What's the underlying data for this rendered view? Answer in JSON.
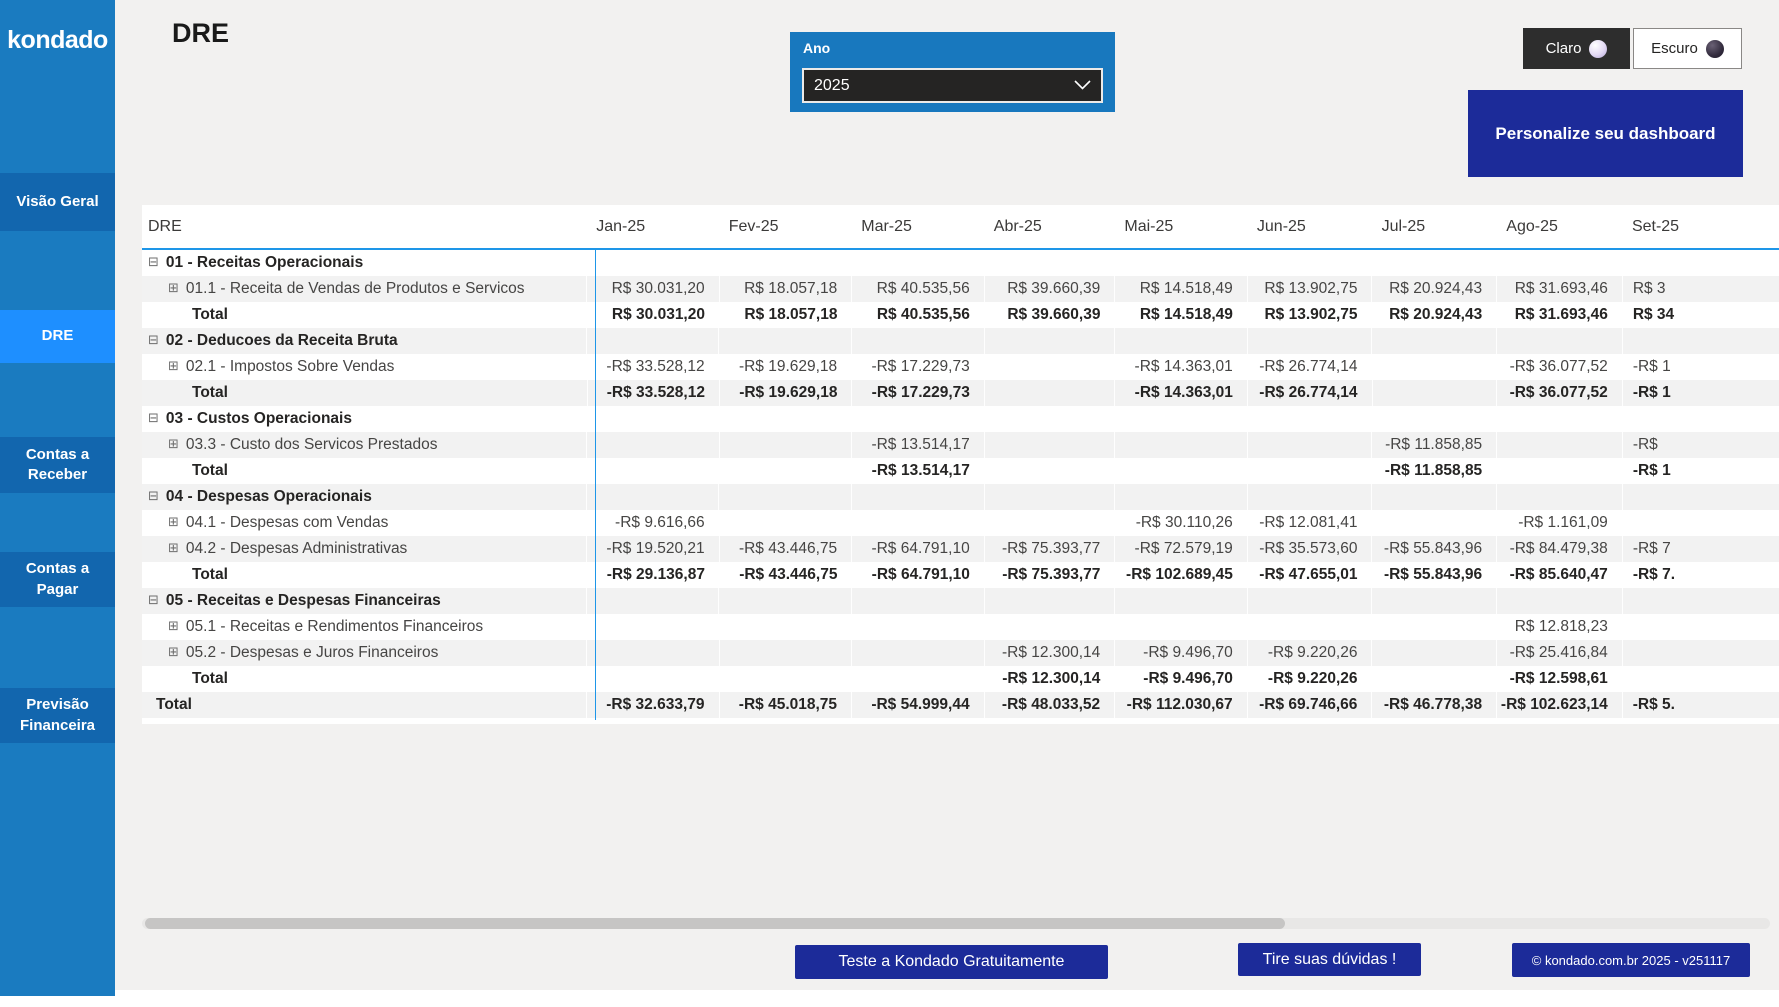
{
  "app": {
    "logo": "kondado"
  },
  "sidebar": {
    "items": [
      {
        "label": "Visão Geral",
        "active": false
      },
      {
        "label": "DRE",
        "active": true
      },
      {
        "label": "Contas a Receber",
        "active": false
      },
      {
        "label": "Contas a Pagar",
        "active": false
      },
      {
        "label": "Previsão Financeira",
        "active": false
      }
    ]
  },
  "header": {
    "title": "DRE",
    "year_filter": {
      "label": "Ano",
      "value": "2025"
    },
    "theme": {
      "light": "Claro",
      "dark": "Escuro"
    },
    "personalize_button": "Personalize seu dashboard"
  },
  "table": {
    "columns": [
      "DRE",
      "Jan-25",
      "Fev-25",
      "Mar-25",
      "Abr-25",
      "Mai-25",
      "Jun-25",
      "Jul-25",
      "Ago-25",
      "Set-25"
    ],
    "rows": [
      {
        "type": "category",
        "label": "01 - Receitas Operacionais",
        "values": [
          "",
          "",
          "",
          "",
          "",
          "",
          "",
          "",
          ""
        ]
      },
      {
        "type": "sub",
        "label": "01.1 - Receita de Vendas de Produtos e Servicos",
        "values": [
          "R$ 30.031,20",
          "R$ 18.057,18",
          "R$ 40.535,56",
          "R$ 39.660,39",
          "R$ 14.518,49",
          "R$ 13.902,75",
          "R$ 20.924,43",
          "R$ 31.693,46",
          "R$ 3"
        ]
      },
      {
        "type": "total",
        "label": "Total",
        "values": [
          "R$ 30.031,20",
          "R$ 18.057,18",
          "R$ 40.535,56",
          "R$ 39.660,39",
          "R$ 14.518,49",
          "R$ 13.902,75",
          "R$ 20.924,43",
          "R$ 31.693,46",
          "R$ 34"
        ]
      },
      {
        "type": "category",
        "label": "02 - Deducoes da Receita Bruta",
        "values": [
          "",
          "",
          "",
          "",
          "",
          "",
          "",
          "",
          ""
        ]
      },
      {
        "type": "sub",
        "label": "02.1 - Impostos Sobre Vendas",
        "values": [
          "-R$ 33.528,12",
          "-R$ 19.629,18",
          "-R$ 17.229,73",
          "",
          "-R$ 14.363,01",
          "-R$ 26.774,14",
          "",
          "-R$ 36.077,52",
          "-R$ 1"
        ]
      },
      {
        "type": "total",
        "label": "Total",
        "values": [
          "-R$ 33.528,12",
          "-R$ 19.629,18",
          "-R$ 17.229,73",
          "",
          "-R$ 14.363,01",
          "-R$ 26.774,14",
          "",
          "-R$ 36.077,52",
          "-R$ 1"
        ]
      },
      {
        "type": "category",
        "label": "03 - Custos Operacionais",
        "values": [
          "",
          "",
          "",
          "",
          "",
          "",
          "",
          "",
          ""
        ]
      },
      {
        "type": "sub",
        "label": "03.3 - Custo dos Servicos Prestados",
        "values": [
          "",
          "",
          "-R$ 13.514,17",
          "",
          "",
          "",
          "-R$ 11.858,85",
          "",
          "-R$"
        ]
      },
      {
        "type": "total",
        "label": "Total",
        "values": [
          "",
          "",
          "-R$ 13.514,17",
          "",
          "",
          "",
          "-R$ 11.858,85",
          "",
          "-R$ 1"
        ]
      },
      {
        "type": "category",
        "label": "04 - Despesas Operacionais",
        "values": [
          "",
          "",
          "",
          "",
          "",
          "",
          "",
          "",
          ""
        ]
      },
      {
        "type": "sub",
        "label": "04.1 - Despesas com Vendas",
        "values": [
          "-R$ 9.616,66",
          "",
          "",
          "",
          "-R$ 30.110,26",
          "-R$ 12.081,41",
          "",
          "-R$ 1.161,09",
          ""
        ]
      },
      {
        "type": "sub",
        "label": "04.2 - Despesas Administrativas",
        "values": [
          "-R$ 19.520,21",
          "-R$ 43.446,75",
          "-R$ 64.791,10",
          "-R$ 75.393,77",
          "-R$ 72.579,19",
          "-R$ 35.573,60",
          "-R$ 55.843,96",
          "-R$ 84.479,38",
          "-R$ 7"
        ]
      },
      {
        "type": "total",
        "label": "Total",
        "values": [
          "-R$ 29.136,87",
          "-R$ 43.446,75",
          "-R$ 64.791,10",
          "-R$ 75.393,77",
          "-R$ 102.689,45",
          "-R$ 47.655,01",
          "-R$ 55.843,96",
          "-R$ 85.640,47",
          "-R$ 7."
        ]
      },
      {
        "type": "category",
        "label": "05 - Receitas e Despesas Financeiras",
        "values": [
          "",
          "",
          "",
          "",
          "",
          "",
          "",
          "",
          ""
        ]
      },
      {
        "type": "sub",
        "label": "05.1 - Receitas e Rendimentos Financeiros",
        "values": [
          "",
          "",
          "",
          "",
          "",
          "",
          "",
          "R$ 12.818,23",
          ""
        ]
      },
      {
        "type": "sub",
        "label": "05.2 - Despesas e Juros Financeiros",
        "values": [
          "",
          "",
          "",
          "-R$ 12.300,14",
          "-R$ 9.496,70",
          "-R$ 9.220,26",
          "",
          "-R$ 25.416,84",
          ""
        ]
      },
      {
        "type": "total",
        "label": "Total",
        "values": [
          "",
          "",
          "",
          "-R$ 12.300,14",
          "-R$ 9.496,70",
          "-R$ 9.220,26",
          "",
          "-R$ 12.598,61",
          ""
        ]
      },
      {
        "type": "grandtotal",
        "label": "Total",
        "values": [
          "-R$ 32.633,79",
          "-R$ 45.018,75",
          "-R$ 54.999,44",
          "-R$ 48.033,52",
          "-R$ 112.030,67",
          "-R$ 69.746,66",
          "-R$ 46.778,38",
          "-R$ 102.623,14",
          "-R$ 5."
        ]
      }
    ]
  },
  "footer": {
    "cta_button": "Teste a Kondado Gratuitamente",
    "help_button": "Tire suas dúvidas !",
    "copyright": "© kondado.com.br 2025 - v251117"
  },
  "colors": {
    "sidebar": "#1A7BC0",
    "sidebar_item": "#1266AE",
    "sidebar_active": "#1E8FFF",
    "slicer": "#1878BE",
    "navy": "#1C2B99",
    "table_accent": "#1E96E8",
    "band": "#F2F2F2",
    "canvas": "#F2F1F0"
  }
}
